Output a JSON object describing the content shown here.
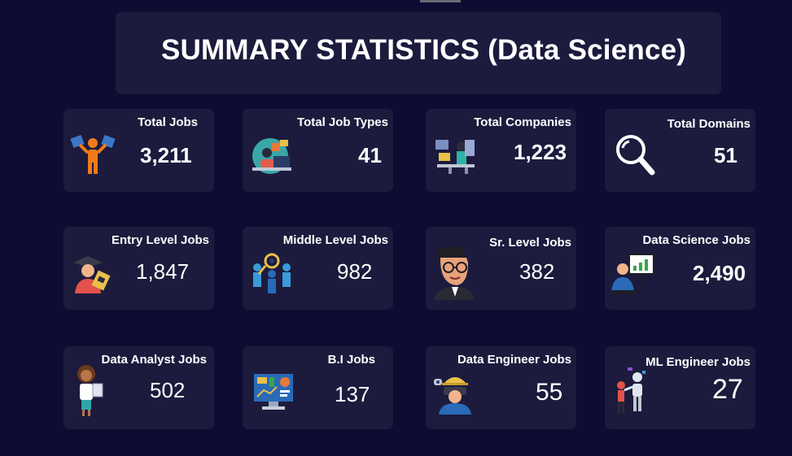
{
  "header": {
    "title": "SUMMARY STATISTICS (Data Science)"
  },
  "cards": [
    {
      "label": "Total Jobs",
      "value": "3,211",
      "icon": "person-books-icon"
    },
    {
      "label": "Total Job Types",
      "value": "41",
      "icon": "worker-desk-icon"
    },
    {
      "label": "Total Companies",
      "value": "1,223",
      "icon": "office-workers-icon"
    },
    {
      "label": "Total Domains",
      "value": "51",
      "icon": "magnifier-icon"
    },
    {
      "label": "Entry Level Jobs",
      "value": "1,847",
      "icon": "graduate-icon"
    },
    {
      "label": "Middle Level Jobs",
      "value": "982",
      "icon": "team-search-icon"
    },
    {
      "label": "Sr. Level Jobs",
      "value": "382",
      "icon": "senior-man-icon"
    },
    {
      "label": "Data Science Jobs",
      "value": "2,490",
      "icon": "presenter-chart-icon"
    },
    {
      "label": "Data Analyst Jobs",
      "value": "502",
      "icon": "analyst-woman-icon"
    },
    {
      "label": "B.I Jobs",
      "value": "137",
      "icon": "dashboard-monitor-icon"
    },
    {
      "label": "Data Engineer Jobs",
      "value": "55",
      "icon": "engineer-vr-icon"
    },
    {
      "label": "ML Engineer Jobs",
      "value": "27",
      "icon": "robot-human-icon"
    }
  ],
  "colors": {
    "background": "#0d0c33",
    "card": "#1c1b3d",
    "text": "#ffffff"
  }
}
